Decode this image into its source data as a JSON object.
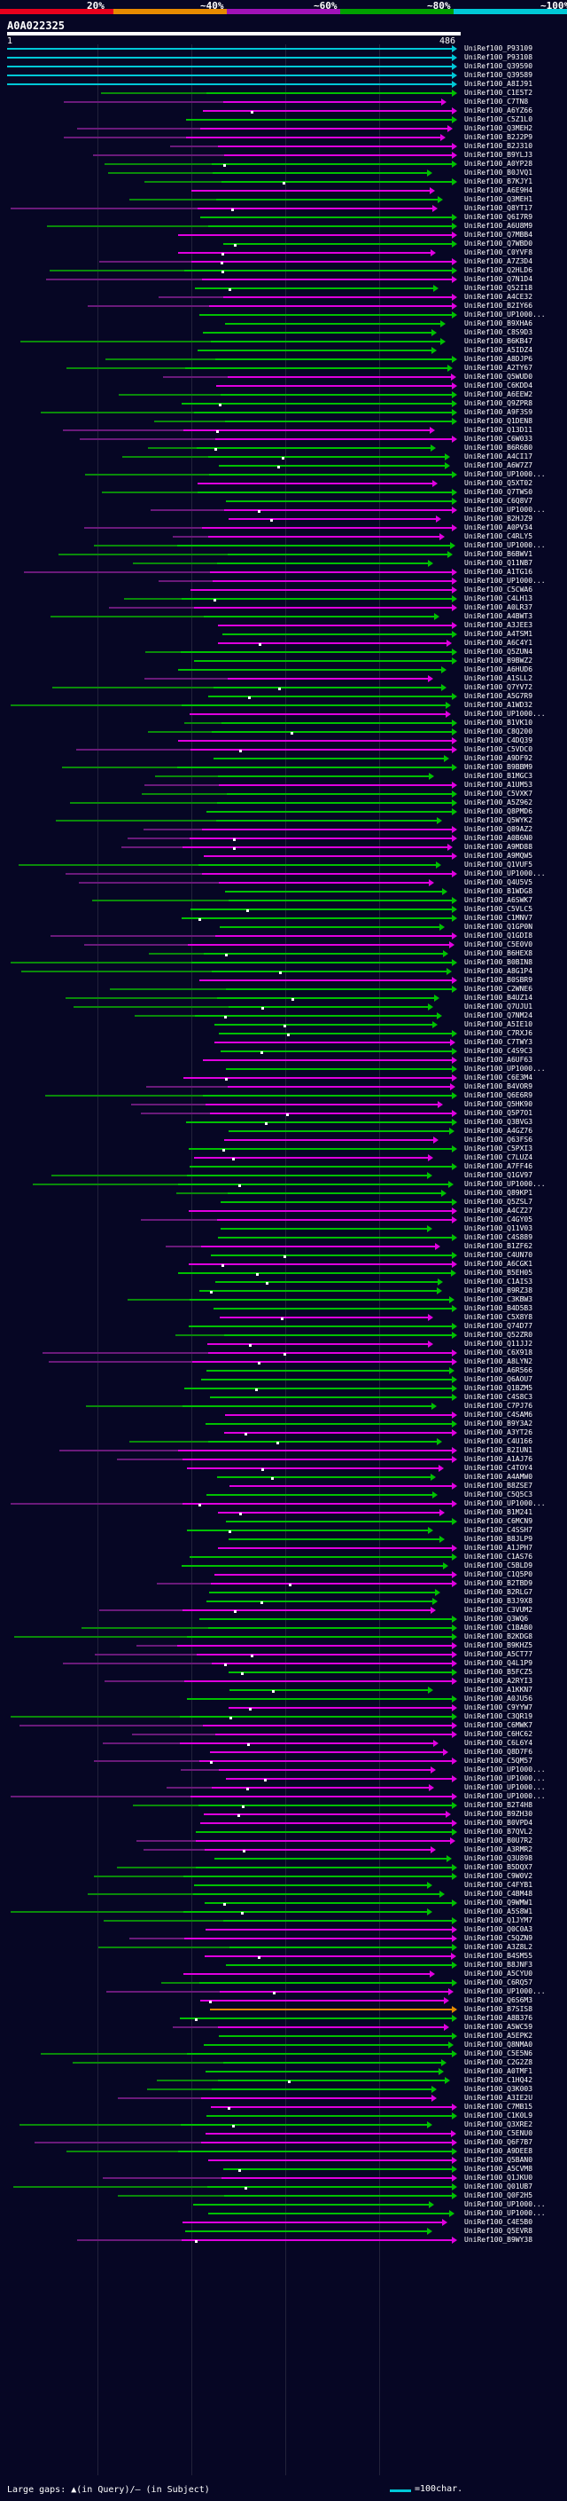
{
  "legend": {
    "segments": [
      {
        "label": "20%",
        "color": "#e8001c"
      },
      {
        "label": "~40%",
        "color": "#e68a00"
      },
      {
        "label": "~60%",
        "color": "#a012b8"
      },
      {
        "label": "~80%",
        "color": "#00a000"
      },
      {
        "label": "~100%",
        "color": "#00c8d7"
      }
    ]
  },
  "query": {
    "id": "A0A022325",
    "start": "1",
    "end": "486"
  },
  "footer": {
    "gaps_label": "Large gaps: ▲(in Query)/— (in Subject)",
    "scale_label": "=100char."
  },
  "colors": {
    "cyan": "#00c8d7",
    "green": "#00c000",
    "magenta": "#e000e0",
    "orange": "#e68a00",
    "dash_green": "#0a8a0a",
    "dash_magenta": "#6a1a7a"
  },
  "hits": [
    "UniRef100_P93109",
    "UniRef100_P93108",
    "UniRef100_Q39590",
    "UniRef100_Q39589",
    "UniRef100_A8IJ91",
    "UniRef100_C1E5T2",
    "UniRef100_C7TN8",
    "UniRef100_A6YZ66",
    "UniRef100_C5Z1L0",
    "UniRef100_Q3MEH2",
    "UniRef100_B2J2P9",
    "UniRef100_B2J310",
    "UniRef100_B9YLJ3",
    "UniRef100_A0YP28",
    "UniRef100_B0JVQ1",
    "UniRef100_B7KJY1",
    "UniRef100_A6E9H4",
    "UniRef100_Q3MEH1",
    "UniRef100_Q8YT17",
    "UniRef100_Q6I7R9",
    "UniRef100_A6U8M9",
    "UniRef100_Q7MBB4",
    "UniRef100_Q7WBD0",
    "UniRef100_C0YVF8",
    "UniRef100_A7Z3D4",
    "UniRef100_Q2HLD6",
    "UniRef100_Q7N1D4",
    "UniRef100_Q52I18",
    "UniRef100_A4CE32",
    "UniRef100_B2IY66",
    "UniRef100_UP1000...",
    "UniRef100_B9XHA6",
    "UniRef100_C8S9D3",
    "UniRef100_B6KB47",
    "UniRef100_A5IDZ4",
    "UniRef100_A8DJP6",
    "UniRef100_A2TY67",
    "UniRef100_Q5WUD0",
    "UniRef100_C6KDD4",
    "UniRef100_A6EEW2",
    "UniRef100_Q9ZPR8",
    "UniRef100_A9F3S9",
    "UniRef100_Q1DEN8",
    "UniRef100_Q13D11",
    "UniRef100_C6W033",
    "UniRef100_B6R6B0",
    "UniRef100_A4CI17",
    "UniRef100_A6W7Z7",
    "UniRef100_UP1000...",
    "UniRef100_Q5XT02",
    "UniRef100_Q7TWS0",
    "UniRef100_C6Q8V7",
    "UniRef100_UP1000...",
    "UniRef100_B2HJZ9",
    "UniRef100_A0PV34",
    "UniRef100_C4RLY5",
    "UniRef100_UP1000...",
    "UniRef100_B6BWV1",
    "UniRef100_Q11NB7",
    "UniRef100_A1TG16",
    "UniRef100_UP1000...",
    "UniRef100_C5CWA6",
    "UniRef100_C4LH13",
    "UniRef100_A0LR37",
    "UniRef100_A4BWT3",
    "UniRef100_A3JEE3",
    "UniRef100_A4TSM1",
    "UniRef100_A6C4Y1",
    "UniRef100_Q5ZUN4",
    "UniRef100_B9BWZ2",
    "UniRef100_A6HUD6",
    "UniRef100_A1SLL2",
    "UniRef100_Q7YV72",
    "UniRef100_A5G7R9",
    "UniRef100_A1WD32",
    "UniRef100_UP1000...",
    "UniRef100_B1VK10",
    "UniRef100_C8Q200",
    "UniRef100_C4DQ39",
    "UniRef100_C5VDC0",
    "UniRef100_A9DF92",
    "UniRef100_B9BBM9",
    "UniRef100_B1MGC3",
    "UniRef100_A1UM53",
    "UniRef100_C5VXK7",
    "UniRef100_A5Z962",
    "UniRef100_Q8PMD6",
    "UniRef100_Q5WYK2",
    "UniRef100_Q89AZ2",
    "UniRef100_A0B6N0",
    "UniRef100_A9MD88",
    "UniRef100_A9MQW5",
    "UniRef100_Q1VUF5",
    "UniRef100_UP1000...",
    "UniRef100_Q4U5V5",
    "UniRef100_B1WDG8",
    "UniRef100_A6SWK7",
    "UniRef100_C5VLC5",
    "UniRef100_C1MNV7",
    "UniRef100_Q1GP0N",
    "UniRef100_Q1GDI8",
    "UniRef100_C5E0V0",
    "UniRef100_B6HEX8",
    "UniRef100_B0BIN8",
    "UniRef100_A8G1P4",
    "UniRef100_B0SBR9",
    "UniRef100_C2WNE6",
    "UniRef100_B4UZ14",
    "UniRef100_Q7UJU1",
    "UniRef100_Q7NM24",
    "UniRef100_A5IE10",
    "UniRef100_C7RXJ6",
    "UniRef100_C7TWY3",
    "UniRef100_C4S9C3",
    "UniRef100_A6UF63",
    "UniRef100_UP1000...",
    "UniRef100_C6E3M4",
    "UniRef100_B4VOR9",
    "UniRef100_Q6E6R9",
    "UniRef100_Q5HK90",
    "UniRef100_Q5P7O1",
    "UniRef100_Q3BVG3",
    "UniRef100_A4GZ76",
    "UniRef100_Q63FS6",
    "UniRef100_C5PXI3",
    "UniRef100_C7LUZ4",
    "UniRef100_A7FF46",
    "UniRef100_Q1GV97",
    "UniRef100_UP1000...",
    "UniRef100_Q89KP1",
    "UniRef100_Q5ZSL7",
    "UniRef100_A4CZ27",
    "UniRef100_C4GY05",
    "UniRef100_Q11V03",
    "UniRef100_C4S889",
    "UniRef100_B1ZF62",
    "UniRef100_C4UN70",
    "UniRef100_A6CGK1",
    "UniRef100_B5EH05",
    "UniRef100_C1AIS3",
    "UniRef100_B9RZ38",
    "UniRef100_C3KBW3",
    "UniRef100_B4D5B3",
    "UniRef100_C5X8Y8",
    "UniRef100_Q74D77",
    "UniRef100_Q52ZR0",
    "UniRef100_Q11JJ2",
    "UniRef100_C6X918",
    "UniRef100_A8LYN2",
    "UniRef100_A6R566",
    "UniRef100_Q6AOU7",
    "UniRef100_Q1BZM5",
    "UniRef100_C4S8C3",
    "UniRef100_C7PJ76",
    "UniRef100_C4SAM6",
    "UniRef100_B9Y3A2",
    "UniRef100_A3YT26",
    "UniRef100_C4U166",
    "UniRef100_B2IUN1",
    "UniRef100_A1AJ76",
    "UniRef100_C4TOY4",
    "UniRef100_A4AMW0",
    "UniRef100_B8ZSE7",
    "UniRef100_C5Q5C3",
    "UniRef100_UP1000...",
    "UniRef100_B1M241",
    "UniRef100_C6MCN9",
    "UniRef100_C4SSH7",
    "UniRef100_B8JLP9",
    "UniRef100_A1JPH7",
    "UniRef100_C1AS76",
    "UniRef100_C5BLD9",
    "UniRef100_C1Q5P0",
    "UniRef100_B2TBD9",
    "UniRef100_B2RLG7",
    "UniRef100_B3J9X8",
    "UniRef100_C3VUM2",
    "UniRef100_Q3WQ6",
    "UniRef100_C1BAB0",
    "UniRef100_B2KDG8",
    "UniRef100_B9KHZ5",
    "UniRef100_A5CT77",
    "UniRef100_Q4L1P9",
    "UniRef100_B5FCZ5",
    "UniRef100_A2RYI3",
    "UniRef100_A1KKN7",
    "UniRef100_A0JU56",
    "UniRef100_C9YYW7",
    "UniRef100_C3QR19",
    "UniRef100_C6MWK7",
    "UniRef100_C6HC62",
    "UniRef100_C6L6Y4",
    "UniRef100_Q8D7F6",
    "UniRef100_C5QM57",
    "UniRef100_UP1000...",
    "UniRef100_UP1000...",
    "UniRef100_UP1000...",
    "UniRef100_UP1000...",
    "UniRef100_B2T4H8",
    "UniRef100_B9ZH30",
    "UniRef100_B0VPD4",
    "UniRef100_B7QVL2",
    "UniRef100_B0U7R2",
    "UniRef100_A3RMR2",
    "UniRef100_Q3U898",
    "UniRef100_B5DQX7",
    "UniRef100_C9W0V2",
    "UniRef100_C4FYB1",
    "UniRef100_C4BM48",
    "UniRef100_Q9WMW1",
    "UniRef100_A5S8W1",
    "UniRef100_Q1JYM7",
    "UniRef100_Q0C0A3",
    "UniRef100_C5QZN9",
    "UniRef100_A3Z8L2",
    "UniRef100_B4SM55",
    "UniRef100_B8JNF3",
    "UniRef100_A5CYU0",
    "UniRef100_C6RQ57",
    "UniRef100_UP1000...",
    "UniRef100_Q6S6M3",
    "UniRef100_B7SIS8",
    "UniRef100_A8B376",
    "UniRef100_A5WC59",
    "UniRef100_A5EPK2",
    "UniRef100_Q8NMA0",
    "UniRef100_C5E5N6",
    "UniRef100_C2G2Z8",
    "UniRef100_A0TMF1",
    "UniRef100_C1HQ42",
    "UniRef100_Q3K003",
    "UniRef100_A3IE2U",
    "UniRef100_C7MB15",
    "UniRef100_C1K0L9",
    "UniRef100_Q3XRE2",
    "UniRef100_C5ENU0",
    "UniRef100_Q6F7B7",
    "UniRef100_A9DEE8",
    "UniRef100_Q5BAN0",
    "UniRef100_A5CVM8",
    "UniRef100_Q1JKU0",
    "UniRef100_Q01UB7",
    "UniRef100_Q0F2H5",
    "UniRef100_UP1000...",
    "UniRef100_UP1000...",
    "UniRef100_C4E5B0",
    "UniRef100_Q5EVR8",
    "UniRef100_B9WY38"
  ]
}
